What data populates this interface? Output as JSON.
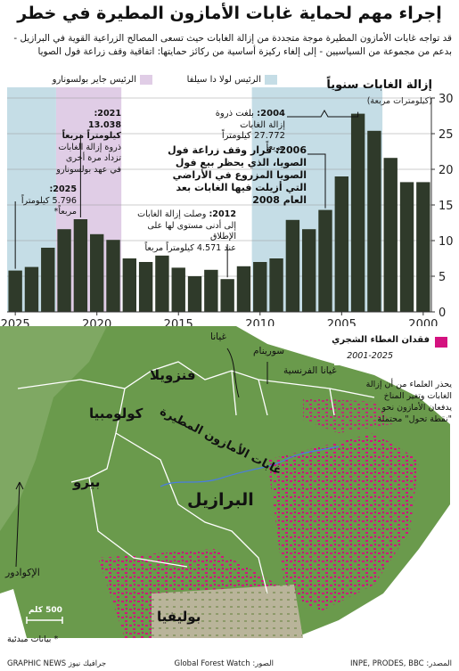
{
  "title": "إجراء مهم لحماية غابات الأمازون المطيرة في خطر",
  "subtitle": "قد تواجه غابات الأمازون المطيرة موجة متجددة من إزالة الغابات حيث تسعى المصالح الزراعية القوية في البرازيل - بدعم من مجموعة من السياسيين - إلى إلغاء ركيزة أساسية من ركائز حمايتها: اتفاقية وقف زراعة فول الصويا",
  "legend": {
    "lula": {
      "label": "الرئيس لولا دا سيلفا",
      "color": "#c5dde6"
    },
    "bolsonaro": {
      "label": "الرئيس جاير بولسونارو",
      "color": "#e0cde6"
    }
  },
  "chart_title": "إزالة الغابات سنوياً",
  "chart_unit": "(كيلومترات مربعة)",
  "annotations": {
    "a2004": {
      "year": "2004:",
      "text": "بلغت ذروة إزالة الغابات 27.772 كيلومتراً مربعاً"
    },
    "a2006": {
      "year": "2006:",
      "text": "قرار وقف زراعة فول الصويا، الذي يحظر بيع فول الصويا المزروع في الأراضي التي أزيلت فيها الغابات بعد العام 2008"
    },
    "a2012": {
      "year": "2012:",
      "text1": "وصلت إزالة الغابات",
      "text2": "إلى أدنى مستوى لها على الإطلاق",
      "text3": "عند 4.571 كيلومتراً مربعاً"
    },
    "a2021": {
      "year": "2021:",
      "value": "13.038 كيلومتراً مربعاً",
      "text": "ذروة إزالة الغابات تزداد مرة أخرى في عهد بولسونارو"
    },
    "a2025": {
      "year": "2025:",
      "value": "5.796 كيلومتراً مربعاً*"
    }
  },
  "chart_data": {
    "type": "bar",
    "title": "إزالة الغابات سنوياً",
    "ylabel": "(كيلومترات مربعة)",
    "x_axis_direction": "right-to-left",
    "ylim": [
      0,
      30
    ],
    "yticks": [
      "0",
      "5",
      "10",
      "15",
      "20",
      "25",
      "30"
    ],
    "xticks": [
      "2000",
      "2005",
      "2010",
      "2015",
      "2020",
      "2025"
    ],
    "categories": [
      2000,
      2001,
      2002,
      2003,
      2004,
      2005,
      2006,
      2007,
      2008,
      2009,
      2010,
      2011,
      2012,
      2013,
      2014,
      2015,
      2016,
      2017,
      2018,
      2019,
      2020,
      2021,
      2022,
      2023,
      2024,
      2025
    ],
    "values": [
      18.2,
      18.2,
      21.6,
      25.4,
      27.8,
      19.0,
      14.3,
      11.6,
      12.9,
      7.5,
      7.0,
      6.4,
      4.6,
      5.9,
      5.0,
      6.2,
      7.9,
      7.0,
      7.5,
      10.1,
      10.9,
      13.0,
      11.6,
      9.0,
      6.3,
      5.8
    ],
    "unit_scale": "thousand km²",
    "shaded_periods": [
      {
        "name": "lula",
        "from": 2003,
        "to": 2010
      },
      {
        "name": "bolsonaro",
        "from": 2019,
        "to": 2022
      },
      {
        "name": "lula",
        "from": 2023,
        "to": 2025
      }
    ],
    "bar_color": "#2f3a2a"
  },
  "map": {
    "legend_title": "فقدان الغطاء الشجري",
    "legend_years": "2001-2025",
    "loss_color": "#d4127f",
    "forest_color": "#6a9a4c",
    "countries": {
      "brazil": "البرازيل",
      "colombia": "كولومبيا",
      "venezuela": "فنزويلا",
      "peru": "بيرو",
      "bolivia": "بوليفيا",
      "ecuador": "الإكوادور",
      "guyana": "غيانا",
      "suriname": "سورينام",
      "french_guiana": "غيانا الفرنسية"
    },
    "amazon_label": "غابات الأمازون المطيرة",
    "warning": "يحذر العلماء من أن إزالة الغابات وتغير المناخ يدفعان الأمازون نحو \"نقطة تحول\" محتملة",
    "scale": "500 كلم",
    "note": "* بيانات مبدئية"
  },
  "footer": {
    "sources_label": "المصدر:",
    "sources": "INPE, PRODES, BBC",
    "image_source_label": "الصور:",
    "image_source": "Global Forest Watch",
    "brand": "GRAPHIC NEWS جرافيك نيوز"
  }
}
